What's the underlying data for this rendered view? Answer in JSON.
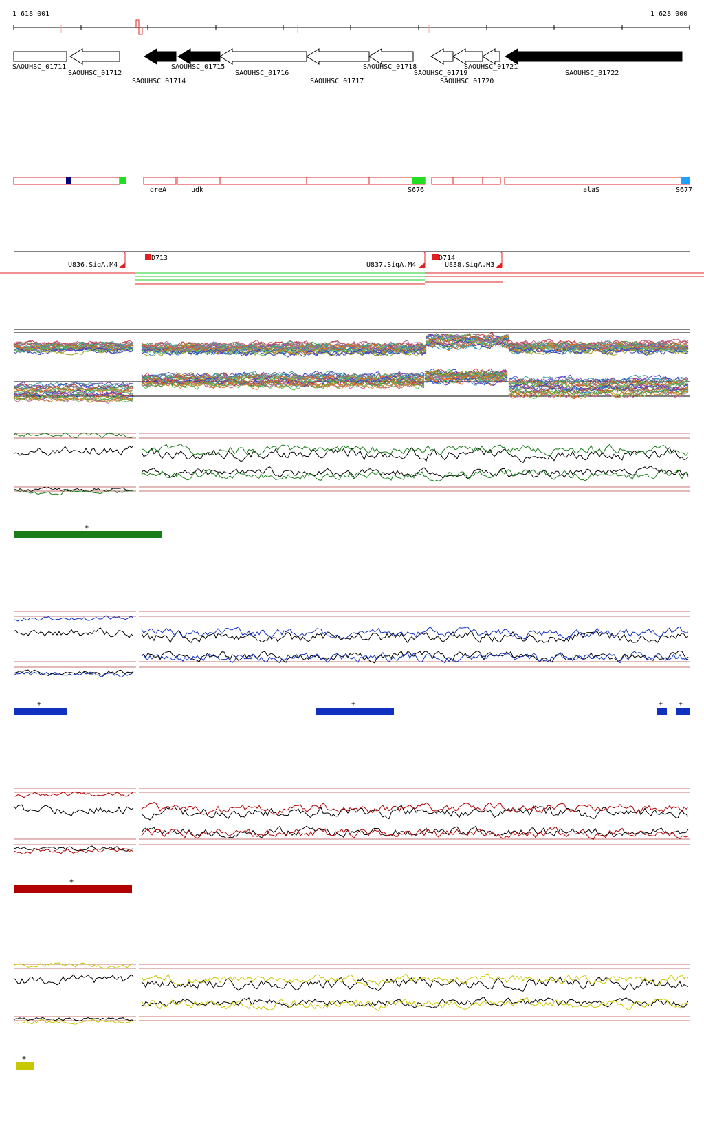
{
  "ruler": {
    "start_label": "1 618 001",
    "end_label": "1 628 000"
  },
  "genes": [
    {
      "name": "SAOUHSC_01711",
      "dir": "right",
      "fill": "white"
    },
    {
      "name": "SAOUHSC_01712",
      "dir": "left",
      "fill": "white"
    },
    {
      "name": "SAOUHSC_01714",
      "dir": "left",
      "fill": "black"
    },
    {
      "name": "SAOUHSC_01715",
      "dir": "left",
      "fill": "black"
    },
    {
      "name": "SAOUHSC_01716",
      "dir": "left",
      "fill": "white"
    },
    {
      "name": "SAOUHSC_01717",
      "dir": "left",
      "fill": "white"
    },
    {
      "name": "SAOUHSC_01718",
      "dir": "left",
      "fill": "white"
    },
    {
      "name": "SAOUHSC_01719",
      "dir": "left",
      "fill": "white"
    },
    {
      "name": "SAOUHSC_01720",
      "dir": "left",
      "fill": "white"
    },
    {
      "name": "SAOUHSC_01721",
      "dir": "left",
      "fill": "white"
    },
    {
      "name": "SAOUHSC_01722",
      "dir": "left",
      "fill": "black"
    }
  ],
  "transcript_labels": {
    "greA": "greA",
    "udk": "udk",
    "alaS": "alaS",
    "s676": "S676",
    "s677": "S677"
  },
  "promoters": {
    "u836": "U836.SigA.M4",
    "u837": "U837.SigA.M4",
    "u838": "U838.SigA.M3",
    "d713": "D713",
    "d714": "D714"
  },
  "colors": {
    "tx_box": "#e02020",
    "green_panel": "#1a7d1a",
    "blue_panel": "#1030c0",
    "red_panel": "#b00000",
    "yellow_panel": "#c8c800",
    "navy_marker": "#000080",
    "bright_green": "#22dd22",
    "sky_blue": "#20a0ff"
  },
  "segment_marks": {
    "green": [
      "+"
    ],
    "blue": [
      "+",
      "+",
      "+",
      "+"
    ],
    "red": [
      "+"
    ],
    "yellow": [
      "+"
    ]
  }
}
